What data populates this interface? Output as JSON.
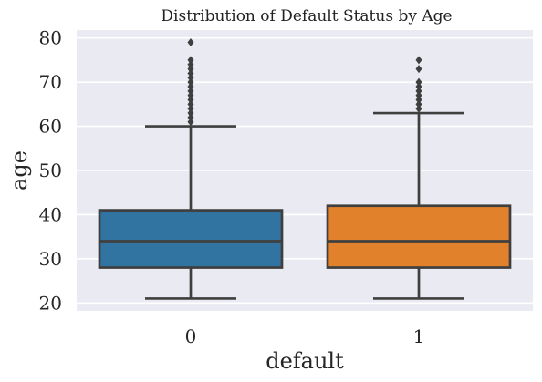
{
  "chart_data": {
    "type": "box",
    "title": "Distribution of Default Status by Age",
    "xlabel": "default",
    "ylabel": "age",
    "categories": [
      "0",
      "1"
    ],
    "yticks": [
      20,
      30,
      40,
      50,
      60,
      70,
      80
    ],
    "ylim": [
      18.2,
      81.8
    ],
    "grid": true,
    "boxes": [
      {
        "category": "0",
        "color": "#3274a1",
        "whisker_low": 21,
        "q1": 28,
        "median": 34,
        "q3": 41,
        "whisker_high": 60,
        "outliers": [
          61,
          62,
          63,
          64,
          65,
          66,
          67,
          68,
          69,
          70,
          71,
          72,
          73,
          74,
          75,
          79
        ]
      },
      {
        "category": "1",
        "color": "#e1812c",
        "whisker_low": 21,
        "q1": 28,
        "median": 34,
        "q3": 42,
        "whisker_high": 63,
        "outliers": [
          64,
          65,
          66,
          67,
          68,
          69,
          70,
          73,
          75
        ]
      }
    ],
    "colors": {
      "plot_background": "#eaeaf2",
      "grid": "#ffffff",
      "line": "#3f3f3f"
    }
  }
}
